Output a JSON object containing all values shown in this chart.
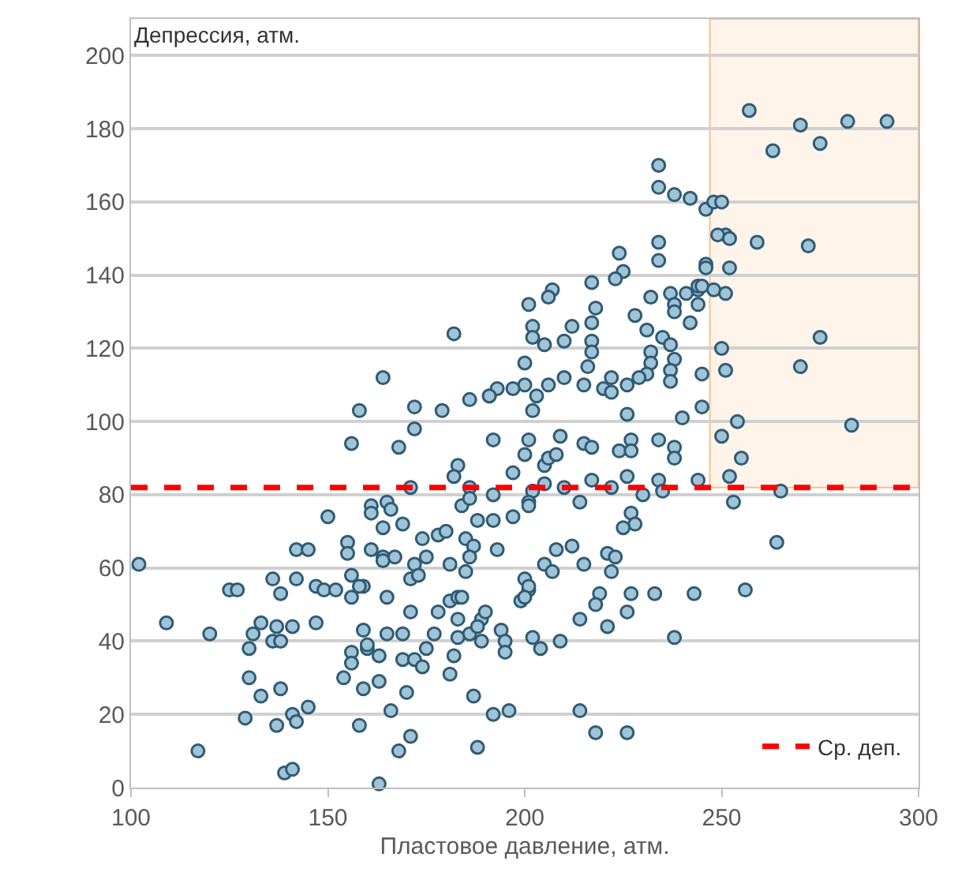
{
  "chart_data": {
    "type": "scatter",
    "xlabel": "Пластовое давление, атм.",
    "ylabel": "Депрессия, атм.",
    "xlim": [
      100,
      300
    ],
    "xticks": [
      100,
      150,
      200,
      250,
      300
    ],
    "ylim": [
      0,
      210
    ],
    "yticks": [
      0,
      20,
      40,
      60,
      80,
      100,
      120,
      140,
      160,
      180,
      200
    ],
    "grid": "y",
    "marker": "circle",
    "legend": "bottom right",
    "ref_lines": [
      {
        "axis": "y",
        "value": 82,
        "label": "Ср. деп.",
        "color": "#ff0000",
        "line_style": "dashed"
      }
    ],
    "bands": [
      {
        "axis": "x",
        "from": 247,
        "to": 300,
        "color": "#f8c08c"
      }
    ],
    "series": [
      {
        "color": "#9fc4d6",
        "x": [
          102,
          109,
          120,
          117,
          125,
          127,
          130,
          130,
          133,
          129,
          131,
          133,
          136,
          138,
          137,
          141,
          136,
          138,
          142,
          147,
          138,
          137,
          141,
          142,
          145,
          139,
          141,
          142,
          145,
          150,
          147,
          149,
          152,
          155,
          155,
          156,
          156,
          159,
          161,
          164,
          161,
          161,
          164,
          165,
          159,
          160,
          156,
          156,
          154,
          159,
          163,
          158,
          163,
          158,
          156,
          163,
          166,
          172,
          179,
          186,
          172,
          168,
          192,
          171,
          183,
          182,
          186,
          184,
          186,
          192,
          197,
          201,
          200,
          205,
          202,
          205,
          201,
          165,
          166,
          169,
          174,
          178,
          180,
          185,
          187,
          188,
          192,
          197,
          193,
          164,
          167,
          172,
          175,
          171,
          173,
          181,
          185,
          186,
          205,
          158,
          178,
          181,
          183,
          184,
          171,
          165,
          169,
          177,
          183,
          186,
          189,
          190,
          188,
          183,
          189,
          194,
          195,
          195,
          202,
          204,
          200,
          201,
          199,
          160,
          169,
          172,
          174,
          175,
          182,
          181,
          170,
          187,
          192,
          196,
          171,
          168,
          188,
          182,
          164,
          191,
          234,
          234,
          238,
          242,
          246,
          234,
          234,
          224,
          225,
          223,
          217,
          207,
          206,
          201,
          218,
          217,
          212,
          202,
          202,
          205,
          210,
          217,
          217,
          216,
          200,
          232,
          228,
          231,
          237,
          241,
          244,
          238,
          238,
          242,
          244,
          246,
          244,
          235,
          237,
          232,
          238,
          237,
          237,
          232,
          231,
          229,
          226,
          222,
          220,
          222,
          215,
          210,
          206,
          203,
          202,
          200,
          197,
          193,
          191,
          245,
          245,
          240,
          226,
          209,
          206,
          208,
          215,
          217,
          224,
          227,
          227,
          234,
          238,
          238,
          210,
          217,
          222,
          226,
          230,
          234,
          235,
          244,
          252,
          253,
          201,
          214,
          227,
          228,
          225,
          208,
          212,
          215,
          207,
          221,
          223,
          222,
          201,
          200,
          219,
          218,
          214,
          227,
          226,
          233,
          243,
          221,
          209,
          238,
          214,
          218,
          226,
          257,
          270,
          282,
          292,
          263,
          275,
          248,
          250,
          251,
          249,
          252,
          259,
          272,
          246,
          252,
          245,
          248,
          251,
          250,
          275,
          251,
          270,
          254,
          250,
          255,
          283,
          265,
          264,
          256
        ],
        "values": [
          61,
          45,
          42,
          10,
          54,
          54,
          38,
          30,
          25,
          19,
          42,
          45,
          40,
          40,
          44,
          44,
          57,
          53,
          57,
          45,
          27,
          17,
          20,
          18,
          22,
          4,
          5,
          65,
          65,
          74,
          55,
          54,
          54,
          67,
          64,
          58,
          52,
          55,
          65,
          63,
          77,
          75,
          71,
          52,
          43,
          38,
          37,
          34,
          30,
          27,
          29,
          17,
          1,
          103,
          94,
          36,
          21,
          104,
          103,
          106,
          98,
          93,
          95,
          82,
          88,
          85,
          82,
          77,
          79,
          80,
          86,
          95,
          91,
          88,
          81,
          83,
          78,
          78,
          76,
          72,
          68,
          69,
          70,
          68,
          66,
          73,
          73,
          74,
          65,
          62,
          63,
          61,
          63,
          57,
          58,
          61,
          59,
          63,
          61,
          55,
          48,
          51,
          52,
          52,
          48,
          42,
          42,
          42,
          46,
          42,
          46,
          48,
          44,
          41,
          40,
          43,
          40,
          37,
          41,
          38,
          57,
          54,
          51,
          39,
          35,
          35,
          33,
          38,
          36,
          31,
          26,
          25,
          20,
          21,
          14,
          10,
          11,
          124,
          112,
          107,
          170,
          164,
          162,
          161,
          158,
          149,
          144,
          146,
          141,
          139,
          138,
          136,
          134,
          132,
          131,
          127,
          126,
          126,
          123,
          121,
          122,
          122,
          119,
          115,
          116,
          134,
          129,
          125,
          135,
          135,
          136,
          132,
          130,
          127,
          132,
          143,
          137,
          123,
          121,
          119,
          117,
          114,
          111,
          116,
          113,
          112,
          110,
          112,
          109,
          108,
          110,
          112,
          110,
          107,
          103,
          110,
          109,
          109,
          107,
          113,
          104,
          101,
          102,
          96,
          90,
          91,
          94,
          93,
          92,
          95,
          92,
          95,
          93,
          90,
          82,
          84,
          82,
          85,
          80,
          84,
          81,
          84,
          85,
          78,
          77,
          78,
          75,
          72,
          71,
          65,
          66,
          61,
          59,
          64,
          63,
          59,
          55,
          52,
          53,
          50,
          46,
          53,
          48,
          53,
          53,
          44,
          40,
          41,
          21,
          15,
          15,
          185,
          181,
          182,
          182,
          174,
          176,
          160,
          160,
          151,
          151,
          150,
          149,
          148,
          142,
          142,
          137,
          136,
          135,
          120,
          123,
          114,
          115,
          100,
          96,
          90,
          99,
          81,
          67,
          54
        ]
      }
    ]
  }
}
